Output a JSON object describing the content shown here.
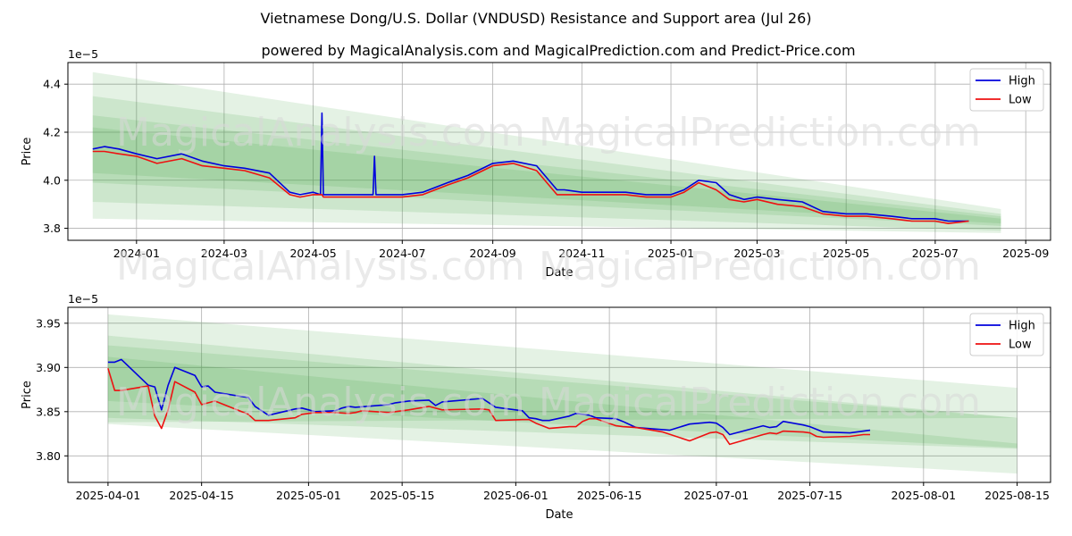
{
  "title": "Vietnamese Dong/U.S. Dollar (VNDUSD) Resistance and Support area (Jul 26)",
  "subtitle": "powered by MagicalAnalysis.com and MagicalPrediction.com and Predict-Price.com",
  "watermarks": [
    "MagicalAnalysis.com",
    "MagicalPrediction.com"
  ],
  "colors": {
    "high": "#0000dd",
    "low": "#ee1111",
    "band": "#2e9e2e",
    "grid": "#b0b0b0"
  },
  "chart_data": [
    {
      "type": "line",
      "xlabel": "Date",
      "ylabel": "Price",
      "exponent": "1e−5",
      "xticks": [
        "2024-01",
        "2024-03",
        "2024-05",
        "2024-07",
        "2024-09",
        "2024-11",
        "2025-01",
        "2025-03",
        "2025-05",
        "2025-07",
        "2025-09"
      ],
      "yticks": [
        "3.8",
        "4.0",
        "4.2",
        "4.4"
      ],
      "ylim": [
        3.75,
        4.49
      ],
      "grid": true,
      "legend": "top-right",
      "legend_labels": [
        "High",
        "Low"
      ],
      "series": [
        {
          "name": "High",
          "x": [
            "2023-12-02",
            "2023-12-10",
            "2023-12-20",
            "2024-01-01",
            "2024-01-15",
            "2024-02-01",
            "2024-02-15",
            "2024-03-01",
            "2024-03-15",
            "2024-04-01",
            "2024-04-15",
            "2024-04-22",
            "2024-05-01",
            "2024-05-06",
            "2024-05-07",
            "2024-05-08",
            "2024-06-01",
            "2024-06-11",
            "2024-06-12",
            "2024-06-13",
            "2024-07-01",
            "2024-07-15",
            "2024-08-01",
            "2024-08-15",
            "2024-09-01",
            "2024-09-15",
            "2024-10-01",
            "2024-10-15",
            "2024-10-20",
            "2024-11-01",
            "2024-11-15",
            "2024-12-01",
            "2024-12-15",
            "2025-01-01",
            "2025-01-10",
            "2025-01-20",
            "2025-02-01",
            "2025-02-10",
            "2025-02-20",
            "2025-03-01",
            "2025-03-15",
            "2025-04-01",
            "2025-04-15",
            "2025-05-01",
            "2025-05-15",
            "2025-06-01",
            "2025-06-15",
            "2025-07-01",
            "2025-07-10",
            "2025-07-24"
          ],
          "values": [
            4.13,
            4.14,
            4.13,
            4.11,
            4.09,
            4.11,
            4.08,
            4.06,
            4.05,
            4.03,
            3.95,
            3.94,
            3.95,
            3.94,
            4.28,
            3.94,
            3.94,
            3.94,
            4.1,
            3.94,
            3.94,
            3.95,
            3.99,
            4.02,
            4.07,
            4.08,
            4.06,
            3.96,
            3.96,
            3.95,
            3.95,
            3.95,
            3.94,
            3.94,
            3.96,
            4.0,
            3.99,
            3.94,
            3.92,
            3.93,
            3.92,
            3.91,
            3.87,
            3.86,
            3.86,
            3.85,
            3.84,
            3.84,
            3.83,
            3.83
          ]
        },
        {
          "name": "Low",
          "x": [
            "2023-12-02",
            "2023-12-10",
            "2023-12-20",
            "2024-01-01",
            "2024-01-15",
            "2024-02-01",
            "2024-02-15",
            "2024-03-01",
            "2024-03-15",
            "2024-04-01",
            "2024-04-15",
            "2024-04-22",
            "2024-05-01",
            "2024-05-06",
            "2024-05-07",
            "2024-05-08",
            "2024-06-01",
            "2024-06-11",
            "2024-06-12",
            "2024-06-13",
            "2024-07-01",
            "2024-07-15",
            "2024-08-01",
            "2024-08-15",
            "2024-09-01",
            "2024-09-15",
            "2024-10-01",
            "2024-10-15",
            "2024-10-20",
            "2024-11-01",
            "2024-11-15",
            "2024-12-01",
            "2024-12-15",
            "2025-01-01",
            "2025-01-10",
            "2025-01-20",
            "2025-02-01",
            "2025-02-10",
            "2025-02-20",
            "2025-03-01",
            "2025-03-15",
            "2025-04-01",
            "2025-04-15",
            "2025-05-01",
            "2025-05-15",
            "2025-06-01",
            "2025-06-15",
            "2025-07-01",
            "2025-07-10",
            "2025-07-24"
          ],
          "values": [
            4.12,
            4.12,
            4.11,
            4.1,
            4.07,
            4.09,
            4.06,
            4.05,
            4.04,
            4.01,
            3.94,
            3.93,
            3.94,
            3.94,
            3.94,
            3.93,
            3.93,
            3.93,
            3.93,
            3.93,
            3.93,
            3.94,
            3.98,
            4.01,
            4.06,
            4.07,
            4.04,
            3.94,
            3.94,
            3.94,
            3.94,
            3.94,
            3.93,
            3.93,
            3.95,
            3.99,
            3.96,
            3.92,
            3.91,
            3.92,
            3.9,
            3.89,
            3.86,
            3.85,
            3.85,
            3.84,
            3.83,
            3.83,
            3.82,
            3.83
          ]
        }
      ],
      "bands": [
        {
          "x": [
            "2023-12-02",
            "2025-08-15"
          ],
          "upper": [
            4.45,
            3.88
          ],
          "lower": [
            3.84,
            3.78
          ]
        },
        {
          "x": [
            "2023-12-02",
            "2025-08-15"
          ],
          "upper": [
            4.35,
            3.86
          ],
          "lower": [
            3.91,
            3.79
          ]
        },
        {
          "x": [
            "2023-12-02",
            "2025-08-15"
          ],
          "upper": [
            4.27,
            3.85
          ],
          "lower": [
            3.99,
            3.81
          ]
        },
        {
          "x": [
            "2023-12-02",
            "2025-08-15"
          ],
          "upper": [
            4.22,
            3.84
          ],
          "lower": [
            4.03,
            3.82
          ]
        }
      ]
    },
    {
      "type": "line",
      "xlabel": "Date",
      "ylabel": "Price",
      "exponent": "1e−5",
      "xticks": [
        "2025-04-01",
        "2025-04-15",
        "2025-05-01",
        "2025-05-15",
        "2025-06-01",
        "2025-06-15",
        "2025-07-01",
        "2025-07-15",
        "2025-08-01",
        "2025-08-15"
      ],
      "yticks": [
        "3.80",
        "3.85",
        "3.90",
        "3.95"
      ],
      "ylim": [
        3.77,
        3.968
      ],
      "grid": true,
      "legend": "top-right",
      "legend_labels": [
        "High",
        "Low"
      ],
      "series": [
        {
          "name": "High",
          "x": [
            "2025-04-01",
            "2025-04-02",
            "2025-04-03",
            "2025-04-07",
            "2025-04-08",
            "2025-04-09",
            "2025-04-10",
            "2025-04-11",
            "2025-04-14",
            "2025-04-15",
            "2025-04-16",
            "2025-04-17",
            "2025-04-22",
            "2025-04-23",
            "2025-04-25",
            "2025-04-29",
            "2025-04-30",
            "2025-05-01",
            "2025-05-02",
            "2025-05-05",
            "2025-05-06",
            "2025-05-07",
            "2025-05-08",
            "2025-05-13",
            "2025-05-14",
            "2025-05-16",
            "2025-05-19",
            "2025-05-20",
            "2025-05-21",
            "2025-05-27",
            "2025-05-28",
            "2025-05-29",
            "2025-06-02",
            "2025-06-03",
            "2025-06-04",
            "2025-06-05",
            "2025-06-06",
            "2025-06-09",
            "2025-06-10",
            "2025-06-11",
            "2025-06-12",
            "2025-06-13",
            "2025-06-16",
            "2025-06-17",
            "2025-06-19",
            "2025-06-24",
            "2025-06-27",
            "2025-06-30",
            "2025-07-01",
            "2025-07-02",
            "2025-07-03",
            "2025-07-07",
            "2025-07-08",
            "2025-07-09",
            "2025-07-10",
            "2025-07-11",
            "2025-07-14",
            "2025-07-15",
            "2025-07-16",
            "2025-07-17",
            "2025-07-21",
            "2025-07-23",
            "2025-07-24"
          ],
          "values": [
            3.906,
            3.906,
            3.909,
            3.88,
            3.878,
            3.852,
            3.88,
            3.9,
            3.891,
            3.878,
            3.879,
            3.872,
            3.866,
            3.856,
            3.846,
            3.853,
            3.854,
            3.852,
            3.85,
            3.851,
            3.854,
            3.856,
            3.855,
            3.858,
            3.86,
            3.862,
            3.863,
            3.857,
            3.861,
            3.865,
            3.86,
            3.855,
            3.851,
            3.843,
            3.842,
            3.84,
            3.84,
            3.845,
            3.848,
            3.847,
            3.846,
            3.843,
            3.842,
            3.839,
            3.832,
            3.829,
            3.836,
            3.838,
            3.837,
            3.832,
            3.824,
            3.832,
            3.834,
            3.832,
            3.833,
            3.839,
            3.835,
            3.833,
            3.83,
            3.827,
            3.826,
            3.828,
            3.829
          ]
        },
        {
          "name": "Low",
          "x": [
            "2025-04-01",
            "2025-04-02",
            "2025-04-03",
            "2025-04-07",
            "2025-04-08",
            "2025-04-09",
            "2025-04-10",
            "2025-04-11",
            "2025-04-14",
            "2025-04-15",
            "2025-04-17",
            "2025-04-22",
            "2025-04-23",
            "2025-04-25",
            "2025-04-29",
            "2025-04-30",
            "2025-05-02",
            "2025-05-05",
            "2025-05-07",
            "2025-05-08",
            "2025-05-09",
            "2025-05-13",
            "2025-05-14",
            "2025-05-16",
            "2025-05-19",
            "2025-05-21",
            "2025-05-27",
            "2025-05-28",
            "2025-05-29",
            "2025-06-02",
            "2025-06-03",
            "2025-06-04",
            "2025-06-05",
            "2025-06-06",
            "2025-06-09",
            "2025-06-10",
            "2025-06-11",
            "2025-06-12",
            "2025-06-13",
            "2025-06-16",
            "2025-06-17",
            "2025-06-19",
            "2025-06-23",
            "2025-06-27",
            "2025-06-30",
            "2025-07-01",
            "2025-07-02",
            "2025-07-03",
            "2025-07-08",
            "2025-07-09",
            "2025-07-10",
            "2025-07-11",
            "2025-07-14",
            "2025-07-15",
            "2025-07-16",
            "2025-07-17",
            "2025-07-21",
            "2025-07-23",
            "2025-07-24"
          ],
          "values": [
            3.899,
            3.874,
            3.874,
            3.879,
            3.845,
            3.831,
            3.852,
            3.884,
            3.872,
            3.858,
            3.862,
            3.847,
            3.84,
            3.84,
            3.843,
            3.847,
            3.849,
            3.849,
            3.848,
            3.849,
            3.851,
            3.849,
            3.85,
            3.852,
            3.856,
            3.852,
            3.853,
            3.852,
            3.84,
            3.841,
            3.841,
            3.837,
            3.834,
            3.831,
            3.833,
            3.833,
            3.839,
            3.842,
            3.842,
            3.834,
            3.833,
            3.832,
            3.827,
            3.817,
            3.826,
            3.827,
            3.824,
            3.813,
            3.824,
            3.826,
            3.825,
            3.828,
            3.827,
            3.826,
            3.822,
            3.821,
            3.822,
            3.824,
            3.824
          ]
        }
      ],
      "bands": [
        {
          "x": [
            "2025-04-01",
            "2025-08-15"
          ],
          "upper": [
            3.96,
            3.877
          ],
          "lower": [
            3.836,
            3.78
          ]
        },
        {
          "x": [
            "2025-04-01",
            "2025-08-15"
          ],
          "upper": [
            3.936,
            3.843
          ],
          "lower": [
            3.838,
            3.843
          ]
        },
        {
          "x": [
            "2025-04-01",
            "2025-08-15"
          ],
          "upper": [
            3.925,
            3.843
          ],
          "lower": [
            3.843,
            3.808
          ]
        },
        {
          "x": [
            "2025-04-01",
            "2025-08-15"
          ],
          "upper": [
            3.912,
            3.814
          ],
          "lower": [
            3.862,
            3.809
          ]
        }
      ]
    }
  ]
}
